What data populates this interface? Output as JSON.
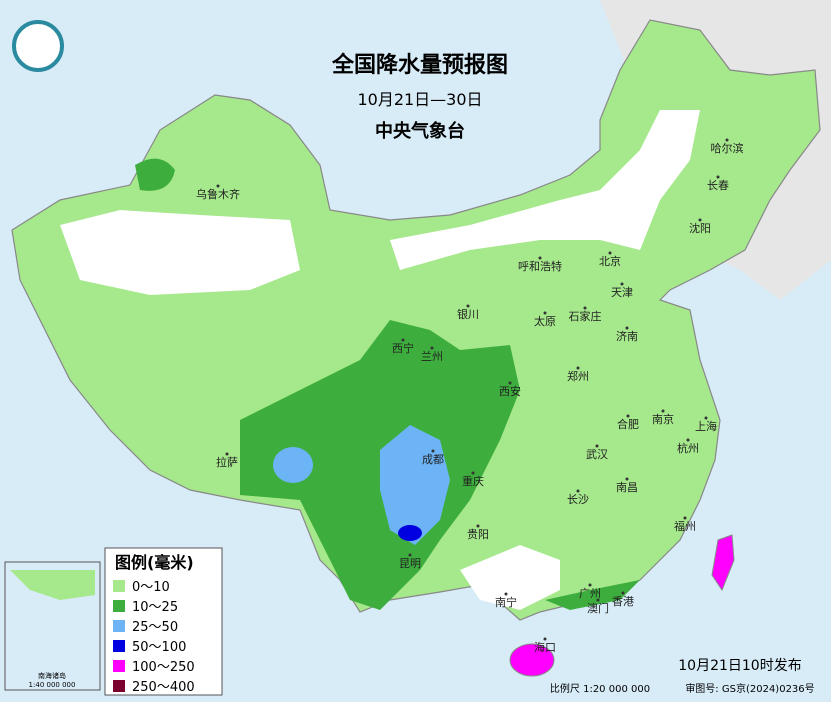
{
  "header": {
    "title": "全国降水量预报图",
    "date_range": "10月21日—30日",
    "issuer": "中央气象台"
  },
  "legend": {
    "title": "图例(毫米)",
    "items": [
      {
        "label": "0～10",
        "color": "#a6e88c"
      },
      {
        "label": "10～25",
        "color": "#3dae3d"
      },
      {
        "label": "25～50",
        "color": "#6cb4f5"
      },
      {
        "label": "50～100",
        "color": "#0000e0"
      },
      {
        "label": "100～250",
        "color": "#ff00ff"
      },
      {
        "label": "250～400",
        "color": "#7a0030"
      }
    ]
  },
  "cities": [
    {
      "name": "乌鲁木齐"
    },
    {
      "name": "呼和浩特"
    },
    {
      "name": "北京"
    },
    {
      "name": "天津"
    },
    {
      "name": "哈尔滨"
    },
    {
      "name": "长春"
    },
    {
      "name": "沈阳"
    },
    {
      "name": "银川"
    },
    {
      "name": "太原"
    },
    {
      "name": "石家庄"
    },
    {
      "name": "济南"
    },
    {
      "name": "西宁"
    },
    {
      "name": "兰州"
    },
    {
      "name": "西安"
    },
    {
      "name": "郑州"
    },
    {
      "name": "合肥"
    },
    {
      "name": "南京"
    },
    {
      "name": "上海"
    },
    {
      "name": "杭州"
    },
    {
      "name": "武汉"
    },
    {
      "name": "拉萨"
    },
    {
      "name": "成都"
    },
    {
      "name": "重庆"
    },
    {
      "name": "南昌"
    },
    {
      "name": "长沙"
    },
    {
      "name": "福州"
    },
    {
      "name": "贵阳"
    },
    {
      "name": "昆明"
    },
    {
      "name": "南宁"
    },
    {
      "name": "广州"
    },
    {
      "name": "澳门"
    },
    {
      "name": "香港"
    },
    {
      "name": "海口"
    }
  ],
  "inset": {
    "label": "南海诸岛",
    "scale": "1:40 000 000"
  },
  "footer": {
    "published": "10月21日10时发布",
    "scale": "比例尺 1:20 000 000",
    "review": "审图号: GS京(2024)0236号"
  }
}
